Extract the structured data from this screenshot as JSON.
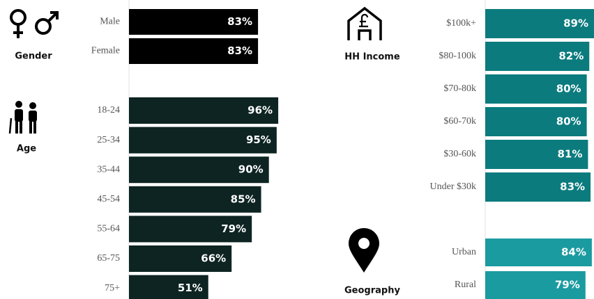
{
  "chart_data": [
    {
      "type": "bar",
      "title": "Gender",
      "categories": [
        "Male",
        "Female"
      ],
      "values": [
        83,
        83
      ],
      "value_labels": [
        "83%",
        "83%"
      ],
      "color": "#000000",
      "xlim": [
        0,
        100
      ]
    },
    {
      "type": "bar",
      "title": "Age",
      "categories": [
        "18-24",
        "25-34",
        "35-44",
        "45-54",
        "55-64",
        "65-75",
        "75+"
      ],
      "values": [
        96,
        95,
        90,
        85,
        79,
        66,
        51
      ],
      "value_labels": [
        "96%",
        "95%",
        "90%",
        "85%",
        "79%",
        "66%",
        "51%"
      ],
      "color": "#0d2422",
      "xlim": [
        0,
        100
      ]
    },
    {
      "type": "bar",
      "title": "HH Income",
      "categories": [
        "$100k+",
        "$80-100k",
        "$70-80k",
        "$60-70k",
        "$30-60k",
        "Under $30k"
      ],
      "values": [
        89,
        82,
        80,
        80,
        81,
        83
      ],
      "value_labels": [
        "89%",
        "82%",
        "80%",
        "80%",
        "81%",
        "83%"
      ],
      "color": "#0b7b7e",
      "xlim": [
        0,
        100
      ]
    },
    {
      "type": "bar",
      "title": "Geography",
      "categories": [
        "Urban",
        "Rural"
      ],
      "values": [
        84,
        79
      ],
      "value_labels": [
        "84%",
        "79%"
      ],
      "color": "#1a9ba0",
      "xlim": [
        0,
        100
      ]
    }
  ]
}
